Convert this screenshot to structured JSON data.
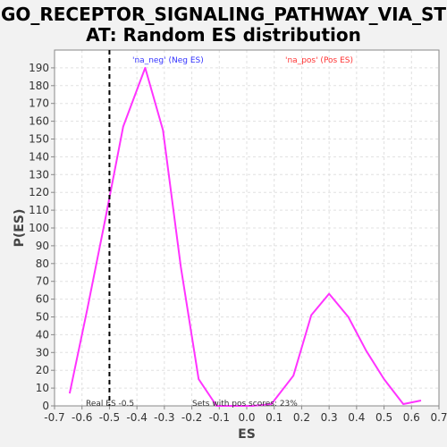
{
  "chart_data": {
    "type": "line",
    "title_line1": "GO_RECEPTOR_SIGNALING_PATHWAY_VIA_ST",
    "title_line2": "AT: Random ES distribution",
    "xlabel": "ES",
    "ylabel": "P(ES)",
    "xlim": [
      -0.7,
      0.7
    ],
    "ylim": [
      0,
      200
    ],
    "xticks": [
      -0.7,
      -0.6,
      -0.5,
      -0.4,
      -0.3,
      -0.2,
      -0.1,
      0.0,
      0.1,
      0.2,
      0.3,
      0.4,
      0.5,
      0.6,
      0.7
    ],
    "xtick_labels": [
      "-0.7",
      "-0.6",
      "-0.5",
      "-0.4",
      "-0.3",
      "-0.2",
      "-0.1",
      "0.0",
      "0.1",
      "0.2",
      "0.3",
      "0.4",
      "0.5",
      "0.6",
      "0.7"
    ],
    "yticks": [
      0,
      10,
      20,
      30,
      40,
      50,
      60,
      70,
      80,
      90,
      100,
      110,
      120,
      130,
      140,
      150,
      160,
      170,
      180,
      190
    ],
    "grid": true,
    "series": [
      {
        "color": "#ff33ff",
        "x": [
          -0.645,
          -0.58,
          -0.515,
          -0.45,
          -0.37,
          -0.305,
          -0.24,
          -0.175,
          -0.11,
          -0.045,
          0.02,
          0.09,
          0.17,
          0.235,
          0.3,
          0.37,
          0.435,
          0.5,
          0.57,
          0.635
        ],
        "y": [
          7,
          55,
          105,
          157,
          190,
          155,
          78,
          15,
          0,
          0,
          0,
          1,
          17,
          51,
          63,
          50,
          31,
          15,
          1,
          3
        ]
      }
    ],
    "vline": {
      "x": -0.5,
      "style": "dashed",
      "color": "#000000"
    },
    "legend": [
      {
        "label": "'na_neg' (Neg ES)",
        "color": "#3333ff"
      },
      {
        "label": "'na_pos' (Pos ES)",
        "color": "#ff3333"
      }
    ],
    "annotations": {
      "real_es": "Real ES -0.5",
      "pos_scores": "Sets with pos scores: 23%"
    }
  },
  "colors": {
    "background": "#f2f2f2",
    "plot_background": "#ffffff",
    "grid": "#e0e0e0",
    "axis": "#888888"
  }
}
